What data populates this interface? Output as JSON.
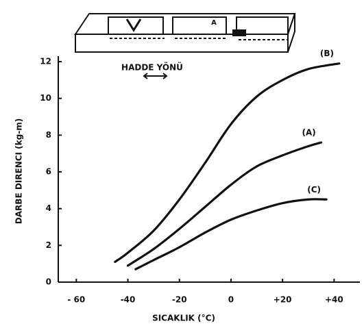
{
  "chart_data": {
    "type": "line",
    "annotations": [
      "HADDE YÖNÜ",
      "A"
    ],
    "x_label": "SICAKLIK (°C)",
    "y_label": "DARBE DIRENCI (kg-m)",
    "xlim": [
      -67,
      50
    ],
    "ylim": [
      0,
      12.3
    ],
    "xticks": [
      {
        "value": -60,
        "label": "- 60"
      },
      -40,
      -20,
      0,
      {
        "value": 20,
        "label": "+20"
      },
      {
        "value": 40,
        "label": "+40"
      }
    ],
    "yticks": [
      0,
      2,
      4,
      6,
      8,
      10,
      12
    ],
    "series": [
      {
        "name": "(B)",
        "color": "#111111",
        "x": [
          -45,
          -40,
          -30,
          -20,
          -10,
          0,
          10,
          20,
          30,
          42
        ],
        "values": [
          1.1,
          1.6,
          2.8,
          4.5,
          6.5,
          8.6,
          10.1,
          11.0,
          11.6,
          11.9
        ]
      },
      {
        "name": "(A)",
        "color": "#111111",
        "x": [
          -40,
          -30,
          -20,
          -10,
          0,
          10,
          20,
          30,
          35
        ],
        "values": [
          0.9,
          1.8,
          2.9,
          4.1,
          5.3,
          6.3,
          6.9,
          7.4,
          7.6
        ]
      },
      {
        "name": "(C)",
        "color": "#111111",
        "x": [
          -37,
          -30,
          -20,
          -10,
          0,
          10,
          20,
          30,
          37
        ],
        "values": [
          0.7,
          1.2,
          1.9,
          2.7,
          3.4,
          3.9,
          4.3,
          4.5,
          4.5
        ]
      }
    ]
  }
}
